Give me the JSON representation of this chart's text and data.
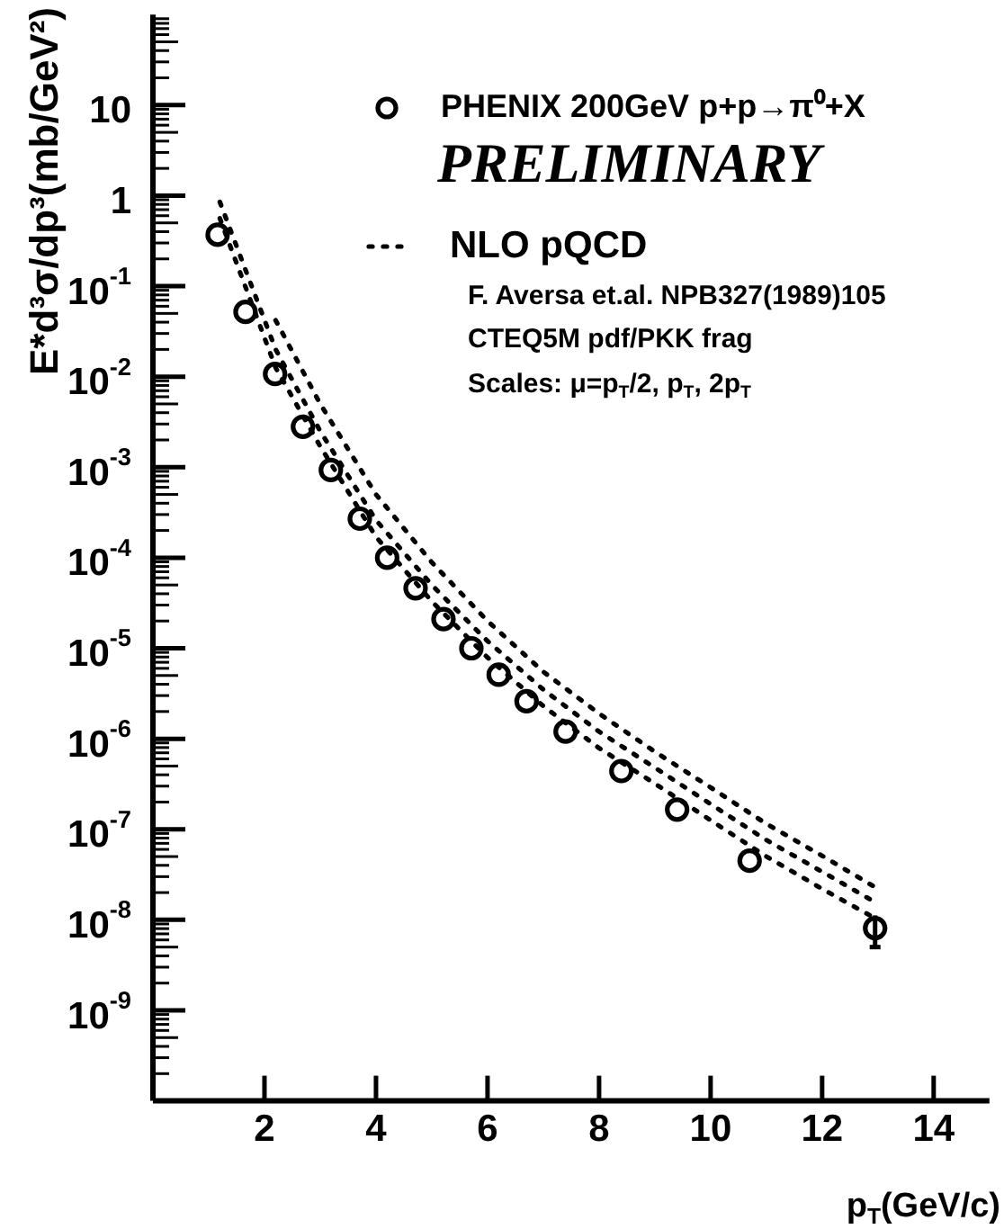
{
  "chart_data": {
    "type": "scatter",
    "xlabel": "p$_{T}$(GeV/c)",
    "ylabel": "E*d³σ/dp³(mb/GeV²)",
    "xlim": [
      0,
      15
    ],
    "xticks": [
      2,
      4,
      6,
      8,
      10,
      12,
      14
    ],
    "ylim": [
      1e-10,
      100
    ],
    "yticks": [
      {
        "value": 1e-09,
        "label": "10$^{-9}$"
      },
      {
        "value": 1e-08,
        "label": "10$^{-8}$"
      },
      {
        "value": 1e-07,
        "label": "10$^{-7}$"
      },
      {
        "value": 1e-06,
        "label": "10$^{-6}$"
      },
      {
        "value": 1e-05,
        "label": "10$^{-5}$"
      },
      {
        "value": 0.0001,
        "label": "10$^{-4}$"
      },
      {
        "value": 0.001,
        "label": "10$^{-3}$"
      },
      {
        "value": 0.01,
        "label": "10$^{-2}$"
      },
      {
        "value": 0.1,
        "label": "10$^{-1}$"
      },
      1,
      10
    ],
    "log": true,
    "grid": false,
    "legend": "top right",
    "annotations": [
      "PRELIMINARY",
      "F. Aversa et.al. NPB327(1989)105",
      "CTEQ5M pdf/PKK frag",
      "Scales: μ=p$_{T}$/2, p$_{T}$, 2p$_{T}$"
    ],
    "series": [
      {
        "name": "PHENIX 200GeV p+p→π⁰+X",
        "type": "scatter",
        "marker": "circle",
        "color": "#000000",
        "x": [
          1.16,
          1.66,
          2.19,
          2.69,
          3.19,
          3.71,
          4.2,
          4.71,
          5.21,
          5.71,
          6.2,
          6.7,
          7.4,
          8.4,
          9.4,
          10.7,
          12.95
        ],
        "values": [
          0.37,
          0.052,
          0.0107,
          0.0028,
          0.00093,
          0.00027,
          0.0001,
          4.6e-05,
          2.1e-05,
          1e-05,
          5.1e-06,
          2.6e-06,
          1.2e-06,
          4.4e-07,
          1.65e-07,
          4.5e-08,
          8.1e-09
        ],
        "errors": [
          null,
          null,
          null,
          null,
          null,
          null,
          null,
          null,
          null,
          null,
          null,
          null,
          null,
          null,
          null,
          null,
          [
            5e-09,
            1.12e-08
          ]
        ]
      },
      {
        "name": "NLO pQCD",
        "type": "line",
        "line_style": "dotted",
        "color": "#000000",
        "x": [
          1.2,
          2.2,
          3,
          4,
          5,
          6,
          7,
          8,
          9,
          10,
          11,
          12,
          13
        ],
        "values": [
          0.85,
          0.02,
          0.0025,
          0.00026,
          5e-05,
          1.2e-05,
          3.5e-06,
          1.2e-06,
          4.8e-07,
          1.9e-07,
          7.6e-08,
          3.4e-08,
          1.5e-08
        ]
      },
      {
        "type": "line",
        "line_style": "dotted",
        "color": "#000000",
        "x": [
          1.2,
          2.2,
          3,
          4,
          5,
          6,
          7,
          8,
          9,
          10,
          11,
          12,
          13
        ],
        "values": [
          0.56,
          0.0126,
          0.0017,
          0.00017,
          3.3e-05,
          7.9e-06,
          2.3e-06,
          7.9e-07,
          3.2e-07,
          1.26e-07,
          5e-08,
          2.2e-08,
          1e-08
        ]
      },
      {
        "type": "line",
        "line_style": "dotted",
        "color": "#000000",
        "x": [
          2.2,
          3,
          4,
          5,
          6,
          7,
          8,
          9,
          10,
          11,
          12,
          13
        ],
        "values": [
          0.042,
          0.005,
          0.0005,
          8.9e-05,
          2e-05,
          5.5e-06,
          1.9e-06,
          7.2e-07,
          2.9e-07,
          1.15e-07,
          5.1e-08,
          2.2e-08
        ]
      }
    ]
  }
}
